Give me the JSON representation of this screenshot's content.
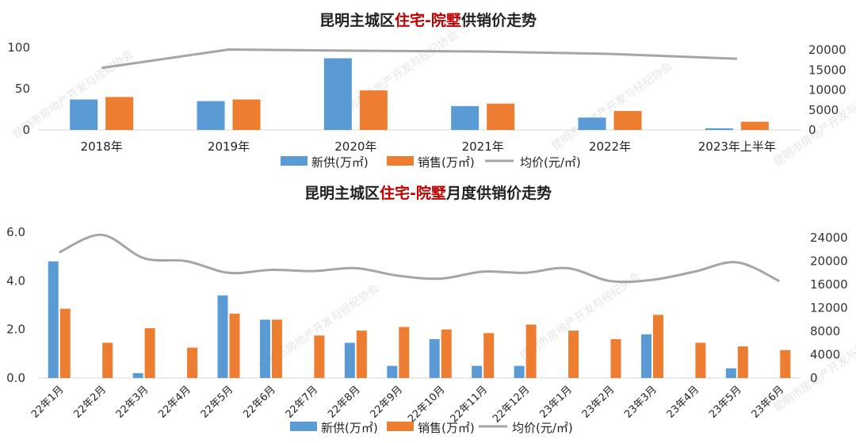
{
  "chart_data": [
    {
      "type": "bar",
      "title_prefix": "昆明主城区",
      "title_highlight": "住宅-院墅",
      "title_suffix": "供销价走势",
      "categories": [
        "2018年",
        "2019年",
        "2020年",
        "2021年",
        "2022年",
        "2023年上半年"
      ],
      "series": [
        {
          "name": "新供(万㎡)",
          "kind": "bar",
          "axis": "left",
          "color": "#5b9bd5",
          "values": [
            37,
            35,
            87,
            29,
            15,
            2
          ]
        },
        {
          "name": "销售(万㎡)",
          "kind": "bar",
          "axis": "left",
          "color": "#ed7d31",
          "values": [
            40,
            37,
            48,
            32,
            23,
            10
          ]
        },
        {
          "name": "均价(元/㎡)",
          "kind": "line",
          "axis": "right",
          "color": "#a5a5a5",
          "values": [
            15500,
            20100,
            19800,
            19600,
            19000,
            17800
          ]
        }
      ],
      "y_left": {
        "min": 0,
        "max": 100,
        "ticks": [
          0,
          50,
          100
        ]
      },
      "y_right": {
        "min": 0,
        "max": 20000,
        "ticks": [
          0,
          5000,
          10000,
          15000,
          20000
        ]
      },
      "legend_position": "bottom",
      "grid": false
    },
    {
      "type": "bar",
      "title_prefix": "昆明主城区",
      "title_highlight": "住宅-院墅",
      "title_suffix": "月度供销价走势",
      "categories": [
        "22年1月",
        "22年2月",
        "22年3月",
        "22年4月",
        "22年5月",
        "22年6月",
        "22年7月",
        "22年8月",
        "22年9月",
        "22年10月",
        "22年11月",
        "22年12月",
        "23年1月",
        "23年2月",
        "23年3月",
        "23年4月",
        "23年5月",
        "23年6月"
      ],
      "series": [
        {
          "name": "新供(万㎡)",
          "kind": "bar",
          "axis": "left",
          "color": "#5b9bd5",
          "values": [
            4.8,
            0,
            0.2,
            0,
            3.4,
            2.4,
            0,
            1.45,
            0.5,
            1.6,
            0.5,
            0.5,
            0,
            0,
            1.8,
            0,
            0.4,
            0
          ]
        },
        {
          "name": "销售(万㎡)",
          "kind": "bar",
          "axis": "left",
          "color": "#ed7d31",
          "values": [
            2.85,
            1.45,
            2.05,
            1.25,
            2.65,
            2.4,
            1.75,
            1.95,
            2.1,
            2.0,
            1.85,
            2.2,
            1.95,
            1.6,
            2.6,
            1.45,
            1.3,
            1.15
          ]
        },
        {
          "name": "均价(元/㎡)",
          "kind": "line",
          "axis": "right",
          "color": "#a5a5a5",
          "values": [
            21500,
            24500,
            20500,
            20000,
            18000,
            18500,
            18300,
            18800,
            17500,
            17000,
            18200,
            18000,
            18800,
            16600,
            16800,
            18200,
            19800,
            16600
          ]
        }
      ],
      "y_left": {
        "min": 0,
        "max": 6,
        "ticks": [
          "0.0",
          "2.0",
          "4.0",
          "6.0"
        ]
      },
      "y_right": {
        "min": 0,
        "max": 24000,
        "ticks": [
          0,
          4000,
          8000,
          12000,
          16000,
          20000,
          24000
        ]
      },
      "legend_position": "bottom",
      "grid": false
    }
  ],
  "watermark": "昆明市房地产开发与经纪协会"
}
